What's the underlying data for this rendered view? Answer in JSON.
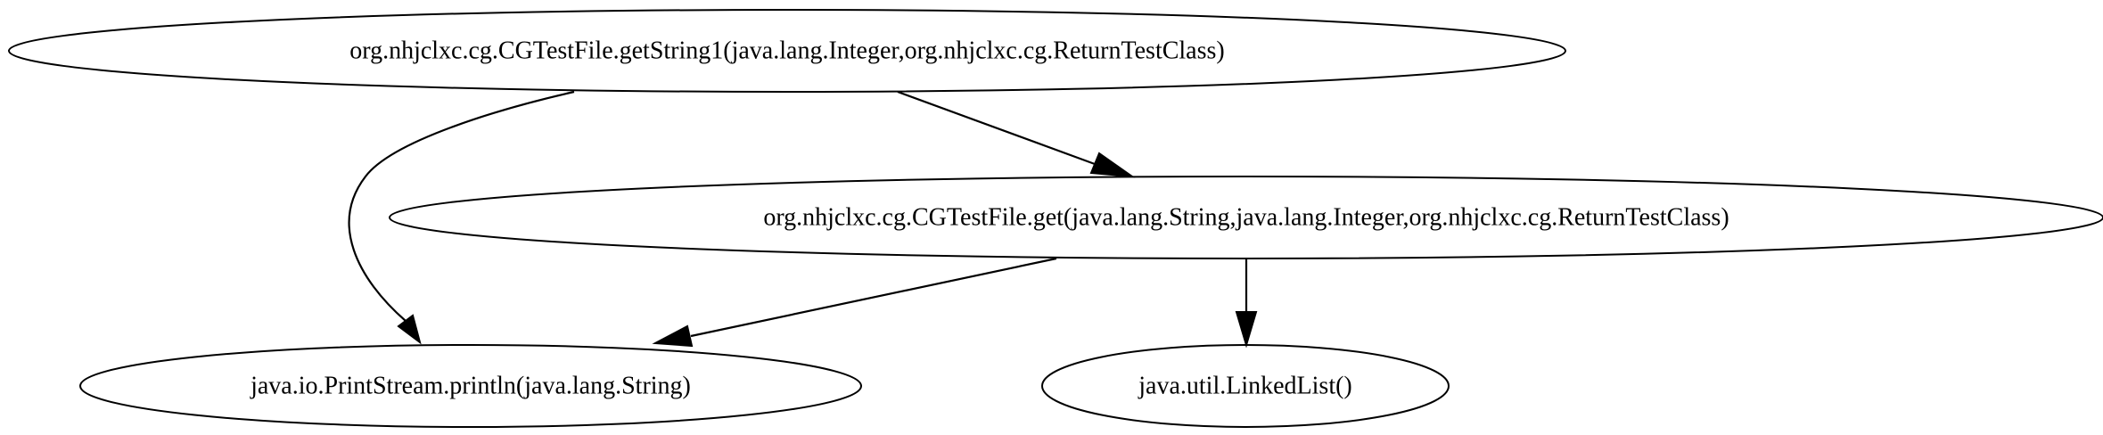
{
  "graph": {
    "nodes": {
      "getstring1": "org.nhjclxc.cg.CGTestFile.getString1(java.lang.Integer,org.nhjclxc.cg.ReturnTestClass)",
      "get": "org.nhjclxc.cg.CGTestFile.get(java.lang.String,java.lang.Integer,org.nhjclxc.cg.ReturnTestClass)",
      "println": "java.io.PrintStream.println(java.lang.String)",
      "linkedlist": "java.util.LinkedList()"
    },
    "edges": [
      {
        "from": "getstring1",
        "to": "println"
      },
      {
        "from": "getstring1",
        "to": "get"
      },
      {
        "from": "get",
        "to": "println"
      },
      {
        "from": "get",
        "to": "linkedlist"
      }
    ]
  },
  "colors": {
    "stroke": "#000000",
    "background": "#ffffff"
  }
}
